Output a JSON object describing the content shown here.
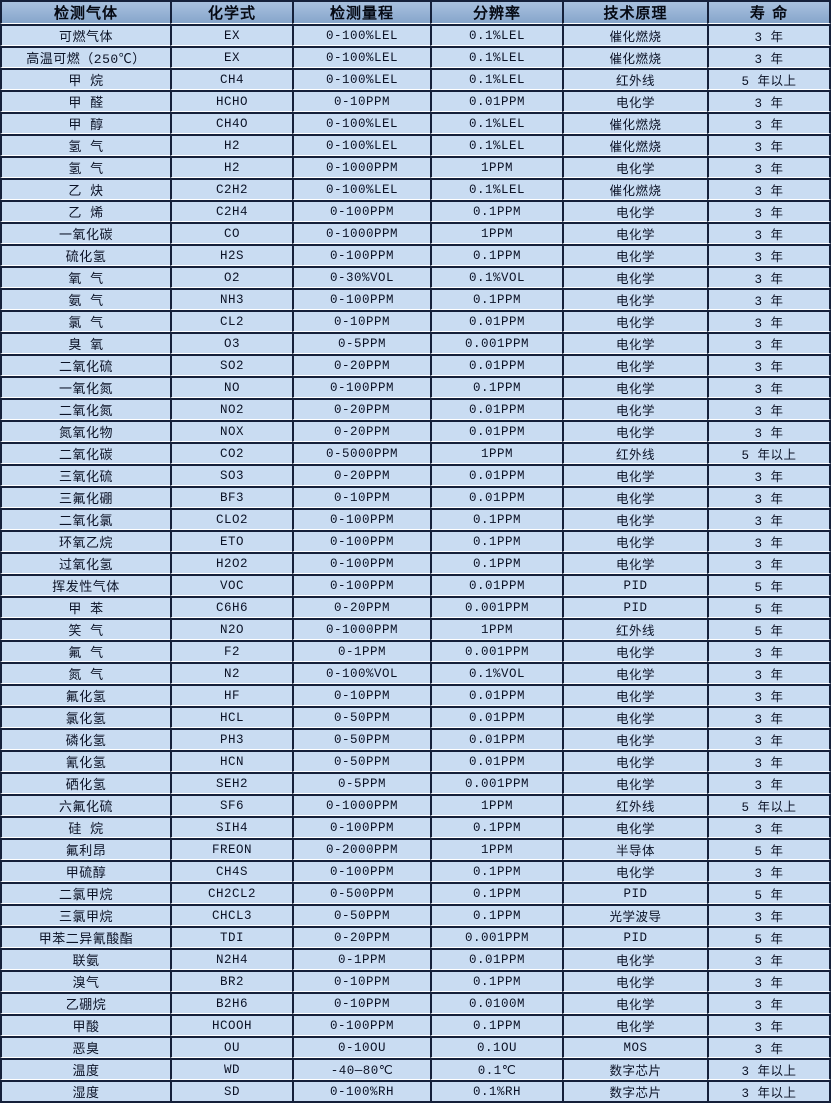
{
  "table": {
    "title": "gas-sensor-specifications",
    "headers": [
      "检测气体",
      "化学式",
      "检测量程",
      "分辨率",
      "技术原理",
      "寿 命"
    ],
    "column_keys": [
      "gas",
      "formula",
      "range",
      "resolution",
      "principle",
      "lifespan"
    ],
    "rows": [
      [
        "可燃气体",
        "EX",
        "0-100%LEL",
        "0.1%LEL",
        "催化燃烧",
        "3 年"
      ],
      [
        "高温可燃（250℃）",
        "EX",
        "0-100%LEL",
        "0.1%LEL",
        "催化燃烧",
        "3 年"
      ],
      [
        "甲 烷",
        "CH4",
        "0-100%LEL",
        "0.1%LEL",
        "红外线",
        "5 年以上"
      ],
      [
        "甲 醛",
        "HCHO",
        "0-10PPM",
        "0.01PPM",
        "电化学",
        "3 年"
      ],
      [
        "甲 醇",
        "CH4O",
        "0-100%LEL",
        "0.1%LEL",
        "催化燃烧",
        "3 年"
      ],
      [
        "氢 气",
        "H2",
        "0-100%LEL",
        "0.1%LEL",
        "催化燃烧",
        "3 年"
      ],
      [
        "氢 气",
        "H2",
        "0-1000PPM",
        "1PPM",
        "电化学",
        "3 年"
      ],
      [
        "乙 炔",
        "C2H2",
        "0-100%LEL",
        "0.1%LEL",
        "催化燃烧",
        "3 年"
      ],
      [
        "乙 烯",
        "C2H4",
        "0-100PPM",
        "0.1PPM",
        "电化学",
        "3 年"
      ],
      [
        "一氧化碳",
        "CO",
        "0-1000PPM",
        "1PPM",
        "电化学",
        "3 年"
      ],
      [
        "硫化氢",
        "H2S",
        "0-100PPM",
        "0.1PPM",
        "电化学",
        "3 年"
      ],
      [
        "氧 气",
        "O2",
        "0-30%VOL",
        "0.1%VOL",
        "电化学",
        "3 年"
      ],
      [
        "氨 气",
        "NH3",
        "0-100PPM",
        "0.1PPM",
        "电化学",
        "3 年"
      ],
      [
        "氯 气",
        "CL2",
        "0-10PPM",
        "0.01PPM",
        "电化学",
        "3 年"
      ],
      [
        "臭 氧",
        "O3",
        "0-5PPM",
        "0.001PPM",
        "电化学",
        "3 年"
      ],
      [
        "二氧化硫",
        "SO2",
        "0-20PPM",
        "0.01PPM",
        "电化学",
        "3 年"
      ],
      [
        "一氧化氮",
        "NO",
        "0-100PPM",
        "0.1PPM",
        "电化学",
        "3 年"
      ],
      [
        "二氧化氮",
        "NO2",
        "0-20PPM",
        "0.01PPM",
        "电化学",
        "3 年"
      ],
      [
        "氮氧化物",
        "NOX",
        "0-20PPM",
        "0.01PPM",
        "电化学",
        "3 年"
      ],
      [
        "二氧化碳",
        "CO2",
        "0-5000PPM",
        "1PPM",
        "红外线",
        "5 年以上"
      ],
      [
        "三氧化硫",
        "SO3",
        "0-20PPM",
        "0.01PPM",
        "电化学",
        "3 年"
      ],
      [
        "三氟化硼",
        "BF3",
        "0-10PPM",
        "0.01PPM",
        "电化学",
        "3 年"
      ],
      [
        "二氧化氯",
        "CLO2",
        "0-100PPM",
        "0.1PPM",
        "电化学",
        "3 年"
      ],
      [
        "环氧乙烷",
        "ETO",
        "0-100PPM",
        "0.1PPM",
        "电化学",
        "3 年"
      ],
      [
        "过氧化氢",
        "H2O2",
        "0-100PPM",
        "0.1PPM",
        "电化学",
        "3 年"
      ],
      [
        "挥发性气体",
        "VOC",
        "0-100PPM",
        "0.01PPM",
        "PID",
        "5 年"
      ],
      [
        "甲 苯",
        "C6H6",
        "0-20PPM",
        "0.001PPM",
        "PID",
        "5 年"
      ],
      [
        "笑 气",
        "N2O",
        "0-1000PPM",
        "1PPM",
        "红外线",
        "5 年"
      ],
      [
        "氟 气",
        "F2",
        "0-1PPM",
        "0.001PPM",
        "电化学",
        "3 年"
      ],
      [
        "氮 气",
        "N2",
        "0-100%VOL",
        "0.1%VOL",
        "电化学",
        "3 年"
      ],
      [
        "氟化氢",
        "HF",
        "0-10PPM",
        "0.01PPM",
        "电化学",
        "3 年"
      ],
      [
        "氯化氢",
        "HCL",
        "0-50PPM",
        "0.01PPM",
        "电化学",
        "3 年"
      ],
      [
        "磷化氢",
        "PH3",
        "0-50PPM",
        "0.01PPM",
        "电化学",
        "3 年"
      ],
      [
        "氰化氢",
        "HCN",
        "0-50PPM",
        "0.01PPM",
        "电化学",
        "3 年"
      ],
      [
        "硒化氢",
        "SEH2",
        "0-5PPM",
        "0.001PPM",
        "电化学",
        "3 年"
      ],
      [
        "六氟化硫",
        "SF6",
        "0-1000PPM",
        "1PPM",
        "红外线",
        "5 年以上"
      ],
      [
        "硅 烷",
        "SIH4",
        "0-100PPM",
        "0.1PPM",
        "电化学",
        "3 年"
      ],
      [
        "氟利昂",
        "FREON",
        "0-2000PPM",
        "1PPM",
        "半导体",
        "5 年"
      ],
      [
        "甲硫醇",
        "CH4S",
        "0-100PPM",
        "0.1PPM",
        "电化学",
        "3 年"
      ],
      [
        "二氯甲烷",
        "CH2CL2",
        "0-500PPM",
        "0.1PPM",
        "PID",
        "5 年"
      ],
      [
        "三氯甲烷",
        "CHCL3",
        "0-50PPM",
        "0.1PPM",
        "光学波导",
        "3 年"
      ],
      [
        "甲苯二异氰酸酯",
        "TDI",
        "0-20PPM",
        "0.001PPM",
        "PID",
        "5 年"
      ],
      [
        "联氨",
        "N2H4",
        "0-1PPM",
        "0.01PPM",
        "电化学",
        "3 年"
      ],
      [
        "溴气",
        "BR2",
        "0-10PPM",
        "0.1PPM",
        "电化学",
        "3 年"
      ],
      [
        "乙硼烷",
        "B2H6",
        "0-10PPM",
        "0.0100M",
        "电化学",
        "3 年"
      ],
      [
        "甲酸",
        "HCOOH",
        "0-100PPM",
        "0.1PPM",
        "电化学",
        "3 年"
      ],
      [
        "恶臭",
        "OU",
        "0-10OU",
        "0.1OU",
        "MOS",
        "3 年"
      ],
      [
        "温度",
        "WD",
        "-40—80℃",
        "0.1℃",
        "数字芯片",
        "3 年以上"
      ],
      [
        "湿度",
        "SD",
        "0-100%RH",
        "0.1%RH",
        "数字芯片",
        "3 年以上"
      ]
    ],
    "colors": {
      "cell_background": "#c9dcf2",
      "header_background": "#95b1d6",
      "border": "#15203a",
      "row_separator": "#ffffff",
      "text": "#0b1226"
    }
  }
}
